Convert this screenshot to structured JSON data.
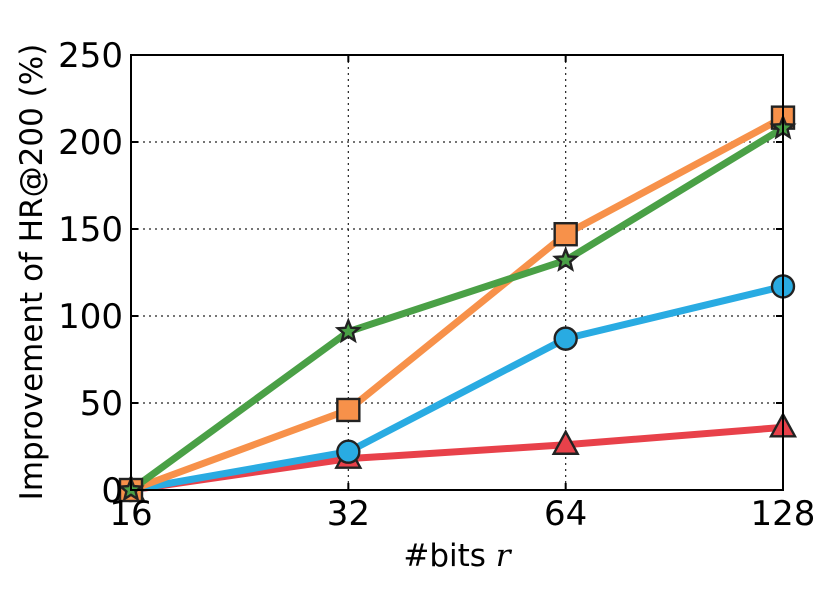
{
  "chart_data": {
    "type": "line",
    "xlabel_text": "#bits ",
    "xlabel_var": "r",
    "ylabel": "Improvement of HR@200 (%)",
    "categories": [
      "16",
      "32",
      "64",
      "128"
    ],
    "y_ticks": [
      "0",
      "50",
      "100",
      "150",
      "200",
      "250"
    ],
    "ylim": [
      0,
      250
    ],
    "grid": true,
    "series": [
      {
        "marker": "triangle",
        "color": "#e8414a",
        "values": [
          0,
          18,
          26,
          36
        ]
      },
      {
        "marker": "circle",
        "color": "#29abe2",
        "values": [
          0,
          22,
          87,
          117
        ]
      },
      {
        "marker": "square",
        "color": "#f7914a",
        "values": [
          0,
          46,
          147,
          214
        ]
      },
      {
        "marker": "star",
        "color": "#4aa046",
        "values": [
          0,
          91,
          132,
          208
        ]
      }
    ]
  }
}
